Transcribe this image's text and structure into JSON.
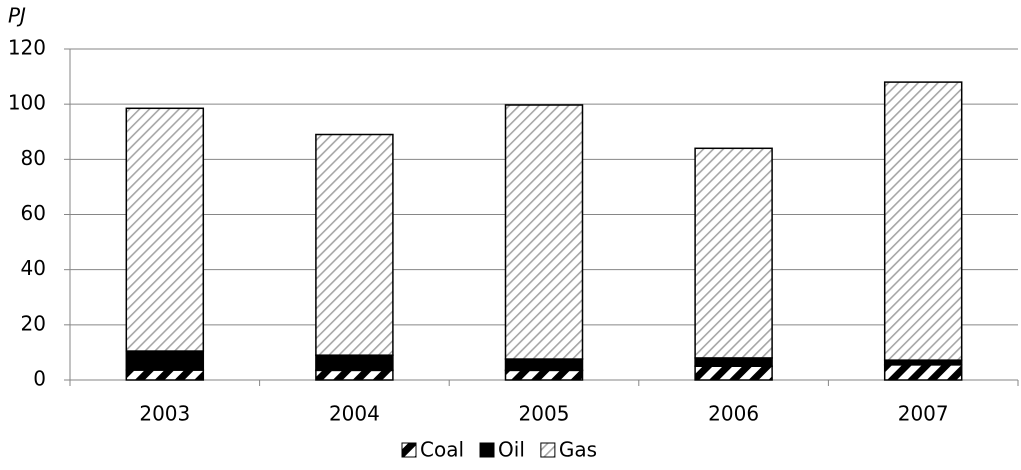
{
  "chart_data": {
    "type": "stacked-bar",
    "ylabel": "PJ",
    "categories": [
      "2003",
      "2004",
      "2005",
      "2006",
      "2007"
    ],
    "series": [
      {
        "name": "Coal",
        "color": "#000000",
        "pattern": "wide-hatch",
        "values": [
          3.6,
          3.5,
          3.5,
          5,
          5.5
        ]
      },
      {
        "name": "Oil",
        "color": "#000000",
        "pattern": "solid",
        "values": [
          6.9,
          5.5,
          4.1,
          3,
          1.7
        ]
      },
      {
        "name": "Gas",
        "color": "#a6a6a6",
        "pattern": "fine-hatch",
        "values": [
          88,
          80,
          92.1,
          76,
          100.8
        ]
      }
    ],
    "ylim": [
      0,
      120
    ],
    "yticks": [
      0,
      20,
      40,
      60,
      80,
      100,
      120
    ],
    "grid": true,
    "legend": "bottom"
  }
}
